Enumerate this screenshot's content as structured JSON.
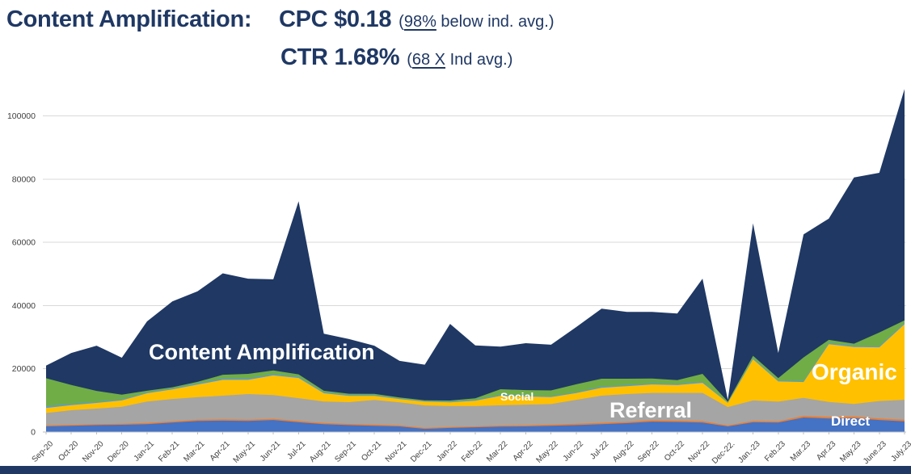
{
  "title": {
    "prefix": "Content Amplification:",
    "cpc_main": "CPC $0.18",
    "cpc_paren_open": "(",
    "cpc_underlined": "98%",
    "cpc_rest": " below ind. avg.)",
    "ctr_main": "CTR 1.68%",
    "ctr_paren_open": "(",
    "ctr_underlined": "68 X",
    "ctr_rest": " Ind avg.)"
  },
  "chart_data": {
    "type": "area",
    "stacked": true,
    "grid": true,
    "legend_position": "none",
    "ylim": [
      0,
      110000
    ],
    "y_ticks": [
      0,
      20000,
      40000,
      60000,
      80000,
      100000
    ],
    "x_labels": [
      "Sep-20",
      "Oct-20",
      "Nov-20",
      "Dec-20",
      "Jan-21",
      "Feb-21",
      "Mar-21",
      "Apr-21",
      "May-21",
      "Jun-21",
      "Jul-21",
      "Aug-21",
      "Sep-21",
      "Oct-21",
      "Nov-21",
      "Dec-21",
      "Jan-22",
      "Feb-22",
      "Mar-22",
      "Apr-22",
      "May-22",
      "Jun-22",
      "Jul-22",
      "Aug-22",
      "Sep-22",
      "Oct-22",
      "Nov-22",
      "Dec-22.",
      "Jan.-23",
      "Feb.23",
      "Mar.23",
      "Apr.23",
      "May.23",
      "June.23",
      "July.23"
    ],
    "series": [
      {
        "name": "Direct",
        "color": "#4472C4",
        "values": [
          1800,
          2000,
          2200,
          2300,
          2500,
          3000,
          3500,
          3600,
          3500,
          3800,
          3100,
          2500,
          2200,
          2000,
          1800,
          1000,
          1300,
          1500,
          1700,
          1800,
          2000,
          2200,
          2500,
          2800,
          3300,
          3200,
          3000,
          1800,
          3100,
          3000,
          4600,
          4300,
          4400,
          3800,
          3400
        ]
      },
      {
        "name": "",
        "color": "#ED7D31",
        "values": [
          300,
          300,
          300,
          300,
          350,
          350,
          400,
          400,
          400,
          400,
          400,
          350,
          350,
          350,
          300,
          300,
          300,
          300,
          350,
          350,
          350,
          400,
          400,
          400,
          450,
          450,
          450,
          300,
          400,
          400,
          500,
          500,
          500,
          500,
          500
        ]
      },
      {
        "name": "Referral",
        "color": "#A5A5A5",
        "values": [
          3900,
          4600,
          4900,
          5400,
          6800,
          7100,
          7100,
          7500,
          8100,
          7500,
          7200,
          6800,
          6900,
          7800,
          7300,
          7100,
          6600,
          6400,
          6400,
          6500,
          6500,
          7600,
          8600,
          8800,
          8600,
          8700,
          8900,
          5800,
          6500,
          6200,
          5700,
          4700,
          4000,
          5500,
          6300
        ]
      },
      {
        "name": "Organic",
        "color": "#FFC000",
        "values": [
          1600,
          1600,
          1800,
          2000,
          2600,
          3000,
          4000,
          5000,
          4500,
          6200,
          6400,
          2600,
          2000,
          1300,
          1000,
          1200,
          1200,
          1700,
          3000,
          2600,
          2200,
          2100,
          2500,
          2500,
          2700,
          2500,
          3200,
          1300,
          13000,
          6400,
          5000,
          18300,
          18000,
          17000,
          23900
        ]
      },
      {
        "name": "Social",
        "color": "#5B9BD5",
        "values": [
          550,
          400,
          300,
          300,
          300,
          300,
          350,
          400,
          400,
          400,
          350,
          300,
          250,
          250,
          200,
          200,
          250,
          250,
          300,
          300,
          300,
          300,
          350,
          350,
          350,
          350,
          350,
          150,
          300,
          250,
          300,
          350,
          350,
          300,
          400
        ]
      },
      {
        "name": "",
        "color": "#70AD47",
        "values": [
          8850,
          6000,
          3500,
          1500,
          500,
          400,
          500,
          1200,
          1500,
          1200,
          800,
          500,
          400,
          350,
          300,
          250,
          300,
          500,
          1800,
          1700,
          1800,
          2500,
          2500,
          2000,
          1500,
          1200,
          2500,
          250,
          800,
          800,
          7500,
          1000,
          700,
          4400,
          800
        ]
      },
      {
        "name": "Content Amplification",
        "color": "#1F3864",
        "values": [
          4000,
          10100,
          14300,
          11700,
          21950,
          27150,
          28650,
          32100,
          30100,
          28800,
          54750,
          18050,
          17300,
          15250,
          11600,
          11250,
          24250,
          16750,
          13450,
          14850,
          14450,
          18100,
          22150,
          21150,
          21100,
          21100,
          30100,
          600,
          41900,
          7950,
          38900,
          38350,
          52550,
          50500,
          73200
        ]
      }
    ],
    "annotations": [
      {
        "text": "Content Amplification"
      },
      {
        "text": "Social"
      },
      {
        "text": "Referral"
      },
      {
        "text": "Organic"
      },
      {
        "text": "Direct"
      }
    ]
  }
}
